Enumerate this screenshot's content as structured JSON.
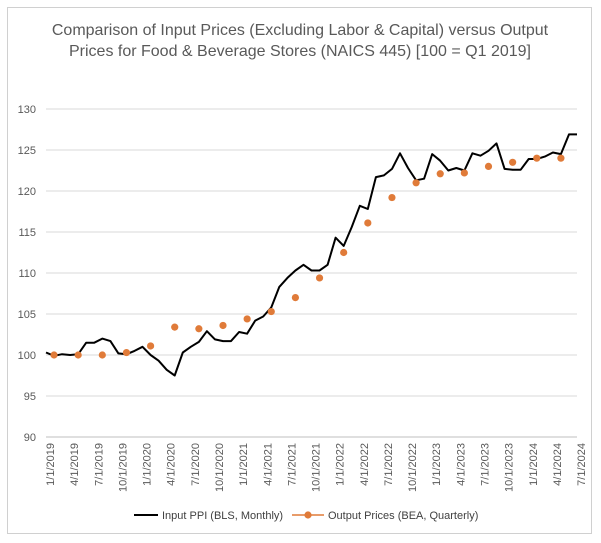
{
  "chart_data": {
    "type": "line",
    "title": "Comparison of Input Prices (Excluding Labor & Capital) versus Output Prices for Food & Beverage Stores (NAICS 445) [100 = Q1 2019]",
    "xlabel": "",
    "ylabel": "",
    "ylim": [
      90,
      130
    ],
    "yticks": [
      90,
      95,
      100,
      105,
      110,
      115,
      120,
      125,
      130
    ],
    "xticks": [
      "1/1/2019",
      "4/1/2019",
      "7/1/2019",
      "10/1/2019",
      "1/1/2020",
      "4/1/2020",
      "7/1/2020",
      "10/1/2020",
      "1/1/2021",
      "4/1/2021",
      "7/1/2021",
      "10/1/2021",
      "1/1/2022",
      "4/1/2022",
      "7/1/2022",
      "10/1/2022",
      "1/1/2023",
      "4/1/2023",
      "7/1/2023",
      "10/1/2023",
      "1/1/2024",
      "4/1/2024",
      "7/1/2024"
    ],
    "grid": true,
    "legend_position": "bottom",
    "series": [
      {
        "name": "Input PPI (BLS, Monthly)",
        "kind": "line",
        "color": "#000000",
        "x": [
          "2019-01",
          "2019-02",
          "2019-03",
          "2019-04",
          "2019-05",
          "2019-06",
          "2019-07",
          "2019-08",
          "2019-09",
          "2019-10",
          "2019-11",
          "2019-12",
          "2020-01",
          "2020-02",
          "2020-03",
          "2020-04",
          "2020-05",
          "2020-06",
          "2020-07",
          "2020-08",
          "2020-09",
          "2020-10",
          "2020-11",
          "2020-12",
          "2021-01",
          "2021-02",
          "2021-03",
          "2021-04",
          "2021-05",
          "2021-06",
          "2021-07",
          "2021-08",
          "2021-09",
          "2021-10",
          "2021-11",
          "2021-12",
          "2022-01",
          "2022-02",
          "2022-03",
          "2022-04",
          "2022-05",
          "2022-06",
          "2022-07",
          "2022-08",
          "2022-09",
          "2022-10",
          "2022-11",
          "2022-12",
          "2023-01",
          "2023-02",
          "2023-03",
          "2023-04",
          "2023-05",
          "2023-06",
          "2023-07",
          "2023-08",
          "2023-09",
          "2023-10",
          "2023-11",
          "2023-12",
          "2024-01",
          "2024-02",
          "2024-03",
          "2024-04",
          "2024-05",
          "2024-06",
          "2024-07"
        ],
        "values": [
          100.3,
          99.9,
          100.1,
          100.0,
          100.1,
          101.5,
          101.5,
          102.0,
          101.7,
          100.2,
          100.1,
          100.5,
          101.0,
          100.0,
          99.3,
          98.2,
          97.5,
          100.3,
          101.0,
          101.6,
          102.9,
          101.9,
          101.7,
          101.7,
          102.8,
          102.6,
          104.2,
          104.7,
          105.8,
          108.3,
          109.4,
          110.3,
          111.0,
          110.3,
          110.3,
          111.0,
          114.3,
          113.3,
          115.6,
          118.2,
          117.8,
          121.7,
          121.9,
          122.7,
          124.6,
          122.8,
          121.3,
          121.5,
          124.5,
          123.7,
          122.5,
          122.8,
          122.5,
          124.6,
          124.3,
          124.9,
          125.8,
          122.7,
          122.6,
          122.6,
          123.9,
          123.9,
          124.2,
          124.7,
          124.5,
          126.9,
          126.9
        ]
      },
      {
        "name": "Output Prices (BEA, Quarterly)",
        "kind": "markers",
        "color": "#E07B39",
        "x": [
          "2019-02",
          "2019-05",
          "2019-08",
          "2019-11",
          "2020-02",
          "2020-05",
          "2020-08",
          "2020-11",
          "2021-02",
          "2021-05",
          "2021-08",
          "2021-11",
          "2022-02",
          "2022-05",
          "2022-08",
          "2022-11",
          "2023-02",
          "2023-05",
          "2023-08",
          "2023-11",
          "2024-02",
          "2024-05"
        ],
        "values": [
          100.0,
          100.0,
          100.0,
          100.3,
          101.1,
          103.4,
          103.2,
          103.6,
          104.4,
          105.3,
          107.0,
          109.4,
          112.5,
          116.1,
          119.2,
          121.0,
          122.1,
          122.2,
          123.0,
          123.5,
          124.0,
          124.0
        ]
      }
    ]
  }
}
